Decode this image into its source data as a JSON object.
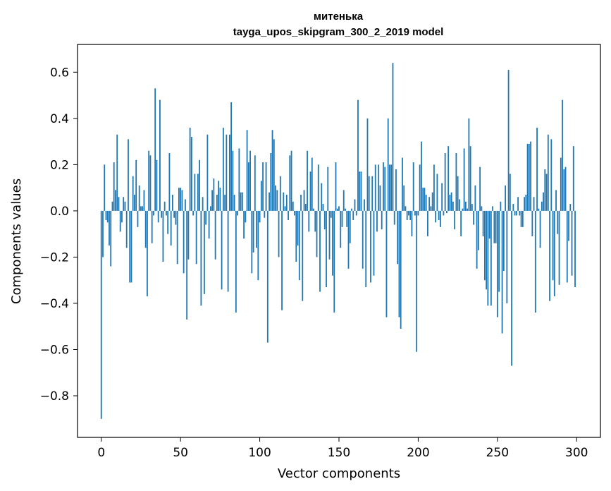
{
  "chart_data": {
    "type": "bar",
    "title": "митенька",
    "subtitle": "tayga_upos_skipgram_300_2_2019 model",
    "xlabel": "Vector components",
    "ylabel": "Components values",
    "xlim": [
      -15,
      315
    ],
    "ylim": [
      -0.98,
      0.72
    ],
    "xticks": [
      0,
      50,
      100,
      150,
      200,
      250,
      300
    ],
    "xtick_labels": [
      "0",
      "50",
      "100",
      "150",
      "200",
      "250",
      "300"
    ],
    "yticks": [
      -0.8,
      -0.6,
      -0.4,
      -0.2,
      0.0,
      0.2,
      0.4,
      0.6
    ],
    "ytick_labels": [
      "−0.8",
      "−0.6",
      "−0.4",
      "−0.2",
      "0.0",
      "0.2",
      "0.4",
      "0.6"
    ],
    "bar_color": "#1f77b4",
    "grid": false,
    "x": [
      0,
      1,
      2,
      3,
      4,
      5,
      6,
      7,
      8,
      9,
      10,
      11,
      12,
      13,
      14,
      15,
      16,
      17,
      18,
      19,
      20,
      21,
      22,
      23,
      24,
      25,
      26,
      27,
      28,
      29,
      30,
      31,
      32,
      33,
      34,
      35,
      36,
      37,
      38,
      39,
      40,
      41,
      42,
      43,
      44,
      45,
      46,
      47,
      48,
      49,
      50,
      51,
      52,
      53,
      54,
      55,
      56,
      57,
      58,
      59,
      60,
      61,
      62,
      63,
      64,
      65,
      66,
      67,
      68,
      69,
      70,
      71,
      72,
      73,
      74,
      75,
      76,
      77,
      78,
      79,
      80,
      81,
      82,
      83,
      84,
      85,
      86,
      87,
      88,
      89,
      90,
      91,
      92,
      93,
      94,
      95,
      96,
      97,
      98,
      99,
      100,
      101,
      102,
      103,
      104,
      105,
      106,
      107,
      108,
      109,
      110,
      111,
      112,
      113,
      114,
      115,
      116,
      117,
      118,
      119,
      120,
      121,
      122,
      123,
      124,
      125,
      126,
      127,
      128,
      129,
      130,
      131,
      132,
      133,
      134,
      135,
      136,
      137,
      138,
      139,
      140,
      141,
      142,
      143,
      144,
      145,
      146,
      147,
      148,
      149,
      150,
      151,
      152,
      153,
      154,
      155,
      156,
      157,
      158,
      159,
      160,
      161,
      162,
      163,
      164,
      165,
      166,
      167,
      168,
      169,
      170,
      171,
      172,
      173,
      174,
      175,
      176,
      177,
      178,
      179,
      180,
      181,
      182,
      183,
      184,
      185,
      186,
      187,
      188,
      189,
      190,
      191,
      192,
      193,
      194,
      195,
      196,
      197,
      198,
      199,
      200,
      201,
      202,
      203,
      204,
      205,
      206,
      207,
      208,
      209,
      210,
      211,
      212,
      213,
      214,
      215,
      216,
      217,
      218,
      219,
      220,
      221,
      222,
      223,
      224,
      225,
      226,
      227,
      228,
      229,
      230,
      231,
      232,
      233,
      234,
      235,
      236,
      237,
      238,
      239,
      240,
      241,
      242,
      243,
      244,
      245,
      246,
      247,
      248,
      249,
      250,
      251,
      252,
      253,
      254,
      255,
      256,
      257,
      258,
      259,
      260,
      261,
      262,
      263,
      264,
      265,
      266,
      267,
      268,
      269,
      270,
      271,
      272,
      273,
      274,
      275,
      276,
      277,
      278,
      279,
      280,
      281,
      282,
      283,
      284,
      285,
      286,
      287,
      288,
      289,
      290,
      291,
      292,
      293,
      294,
      295,
      296,
      297,
      298,
      299
    ],
    "values": [
      -0.9,
      -0.2,
      0.2,
      -0.04,
      -0.05,
      -0.15,
      -0.24,
      0.04,
      0.21,
      0.09,
      0.33,
      0.06,
      -0.09,
      -0.05,
      0.06,
      0.04,
      -0.16,
      0.31,
      -0.31,
      -0.31,
      0.15,
      0.07,
      0.22,
      -0.07,
      0.11,
      0.02,
      0.02,
      0.09,
      -0.16,
      -0.37,
      0.26,
      0.24,
      -0.14,
      -0.02,
      0.53,
      0.22,
      -0.05,
      0.48,
      -0.03,
      -0.22,
      0.04,
      -0.02,
      -0.1,
      0.25,
      -0.15,
      0.07,
      -0.03,
      -0.06,
      -0.23,
      0.1,
      0.1,
      0.09,
      -0.27,
      0.05,
      -0.47,
      -0.21,
      0.36,
      0.32,
      -0.02,
      0.16,
      -0.23,
      0.16,
      0.22,
      -0.41,
      0.06,
      -0.36,
      -0.06,
      0.33,
      -0.12,
      0.02,
      0.09,
      0.14,
      -0.21,
      0.07,
      0.13,
      0.1,
      -0.34,
      0.36,
      0.07,
      0.33,
      -0.35,
      0.33,
      0.47,
      0.26,
      0.07,
      -0.44,
      -0.02,
      0.27,
      0.08,
      0.08,
      -0.12,
      -0.05,
      0.35,
      0.21,
      0.26,
      -0.27,
      -0.18,
      0.24,
      -0.16,
      -0.3,
      -0.05,
      0.13,
      0.21,
      -0.03,
      0.21,
      -0.57,
      0.08,
      0.25,
      0.35,
      0.31,
      0.11,
      0.09,
      -0.2,
      0.15,
      -0.43,
      0.08,
      0.02,
      0.07,
      -0.04,
      0.24,
      0.26,
      0.04,
      -0.02,
      -0.22,
      -0.15,
      -0.3,
      0.07,
      -0.39,
      0.09,
      0.03,
      0.26,
      -0.09,
      0.17,
      0.23,
      0.01,
      -0.09,
      -0.2,
      0.2,
      -0.35,
      0.12,
      0.03,
      -0.08,
      -0.33,
      0.19,
      -0.21,
      -0.03,
      -0.28,
      -0.44,
      0.21,
      0.01,
      0.02,
      -0.16,
      -0.07,
      0.09,
      0.01,
      -0.07,
      -0.25,
      -0.14,
      0.01,
      -0.04,
      0.05,
      -0.02,
      0.48,
      0.17,
      0.17,
      -0.25,
      0.05,
      -0.33,
      0.4,
      0.15,
      -0.31,
      0.15,
      -0.28,
      0.2,
      -0.09,
      0.2,
      0.11,
      -0.08,
      0.21,
      0.19,
      -0.46,
      0.4,
      0.2,
      0.2,
      0.64,
      -0.06,
      0.18,
      -0.23,
      -0.46,
      -0.51,
      0.23,
      0.11,
      0.02,
      -0.04,
      -0.02,
      -0.04,
      -0.11,
      0.21,
      -0.02,
      -0.61,
      -0.02,
      0.2,
      0.3,
      0.1,
      0.1,
      0.07,
      -0.11,
      0.06,
      0.02,
      0.08,
      0.2,
      -0.05,
      0.16,
      -0.04,
      -0.07,
      0.12,
      -0.02,
      0.25,
      -0.01,
      0.28,
      0.07,
      0.08,
      0.04,
      -0.08,
      0.25,
      0.15,
      0.05,
      -0.11,
      0.01,
      0.27,
      0.04,
      0.01,
      0.4,
      0.28,
      0.03,
      -0.06,
      0.11,
      -0.25,
      -0.17,
      0.19,
      0.02,
      -0.11,
      -0.3,
      -0.34,
      -0.41,
      -0.12,
      -0.41,
      0.02,
      -0.14,
      -0.14,
      -0.46,
      -0.35,
      0.04,
      -0.53,
      -0.26,
      0.11,
      -0.4,
      0.61,
      0.16,
      -0.67,
      0.03,
      -0.02,
      -0.02,
      0.06,
      -0.02,
      -0.07,
      -0.07,
      0.06,
      0.07,
      0.29,
      0.29,
      0.3,
      -0.11,
      0.06,
      -0.44,
      0.36,
      0.01,
      -0.16,
      0.04,
      0.08,
      0.18,
      0.16,
      0.33,
      -0.39,
      0.31,
      -0.3,
      -0.37,
      0.09,
      -0.1,
      -0.32,
      0.23,
      0.48,
      0.18,
      0.19,
      -0.31,
      -0.13,
      0.03,
      -0.28,
      0.28,
      -0.33
    ]
  }
}
